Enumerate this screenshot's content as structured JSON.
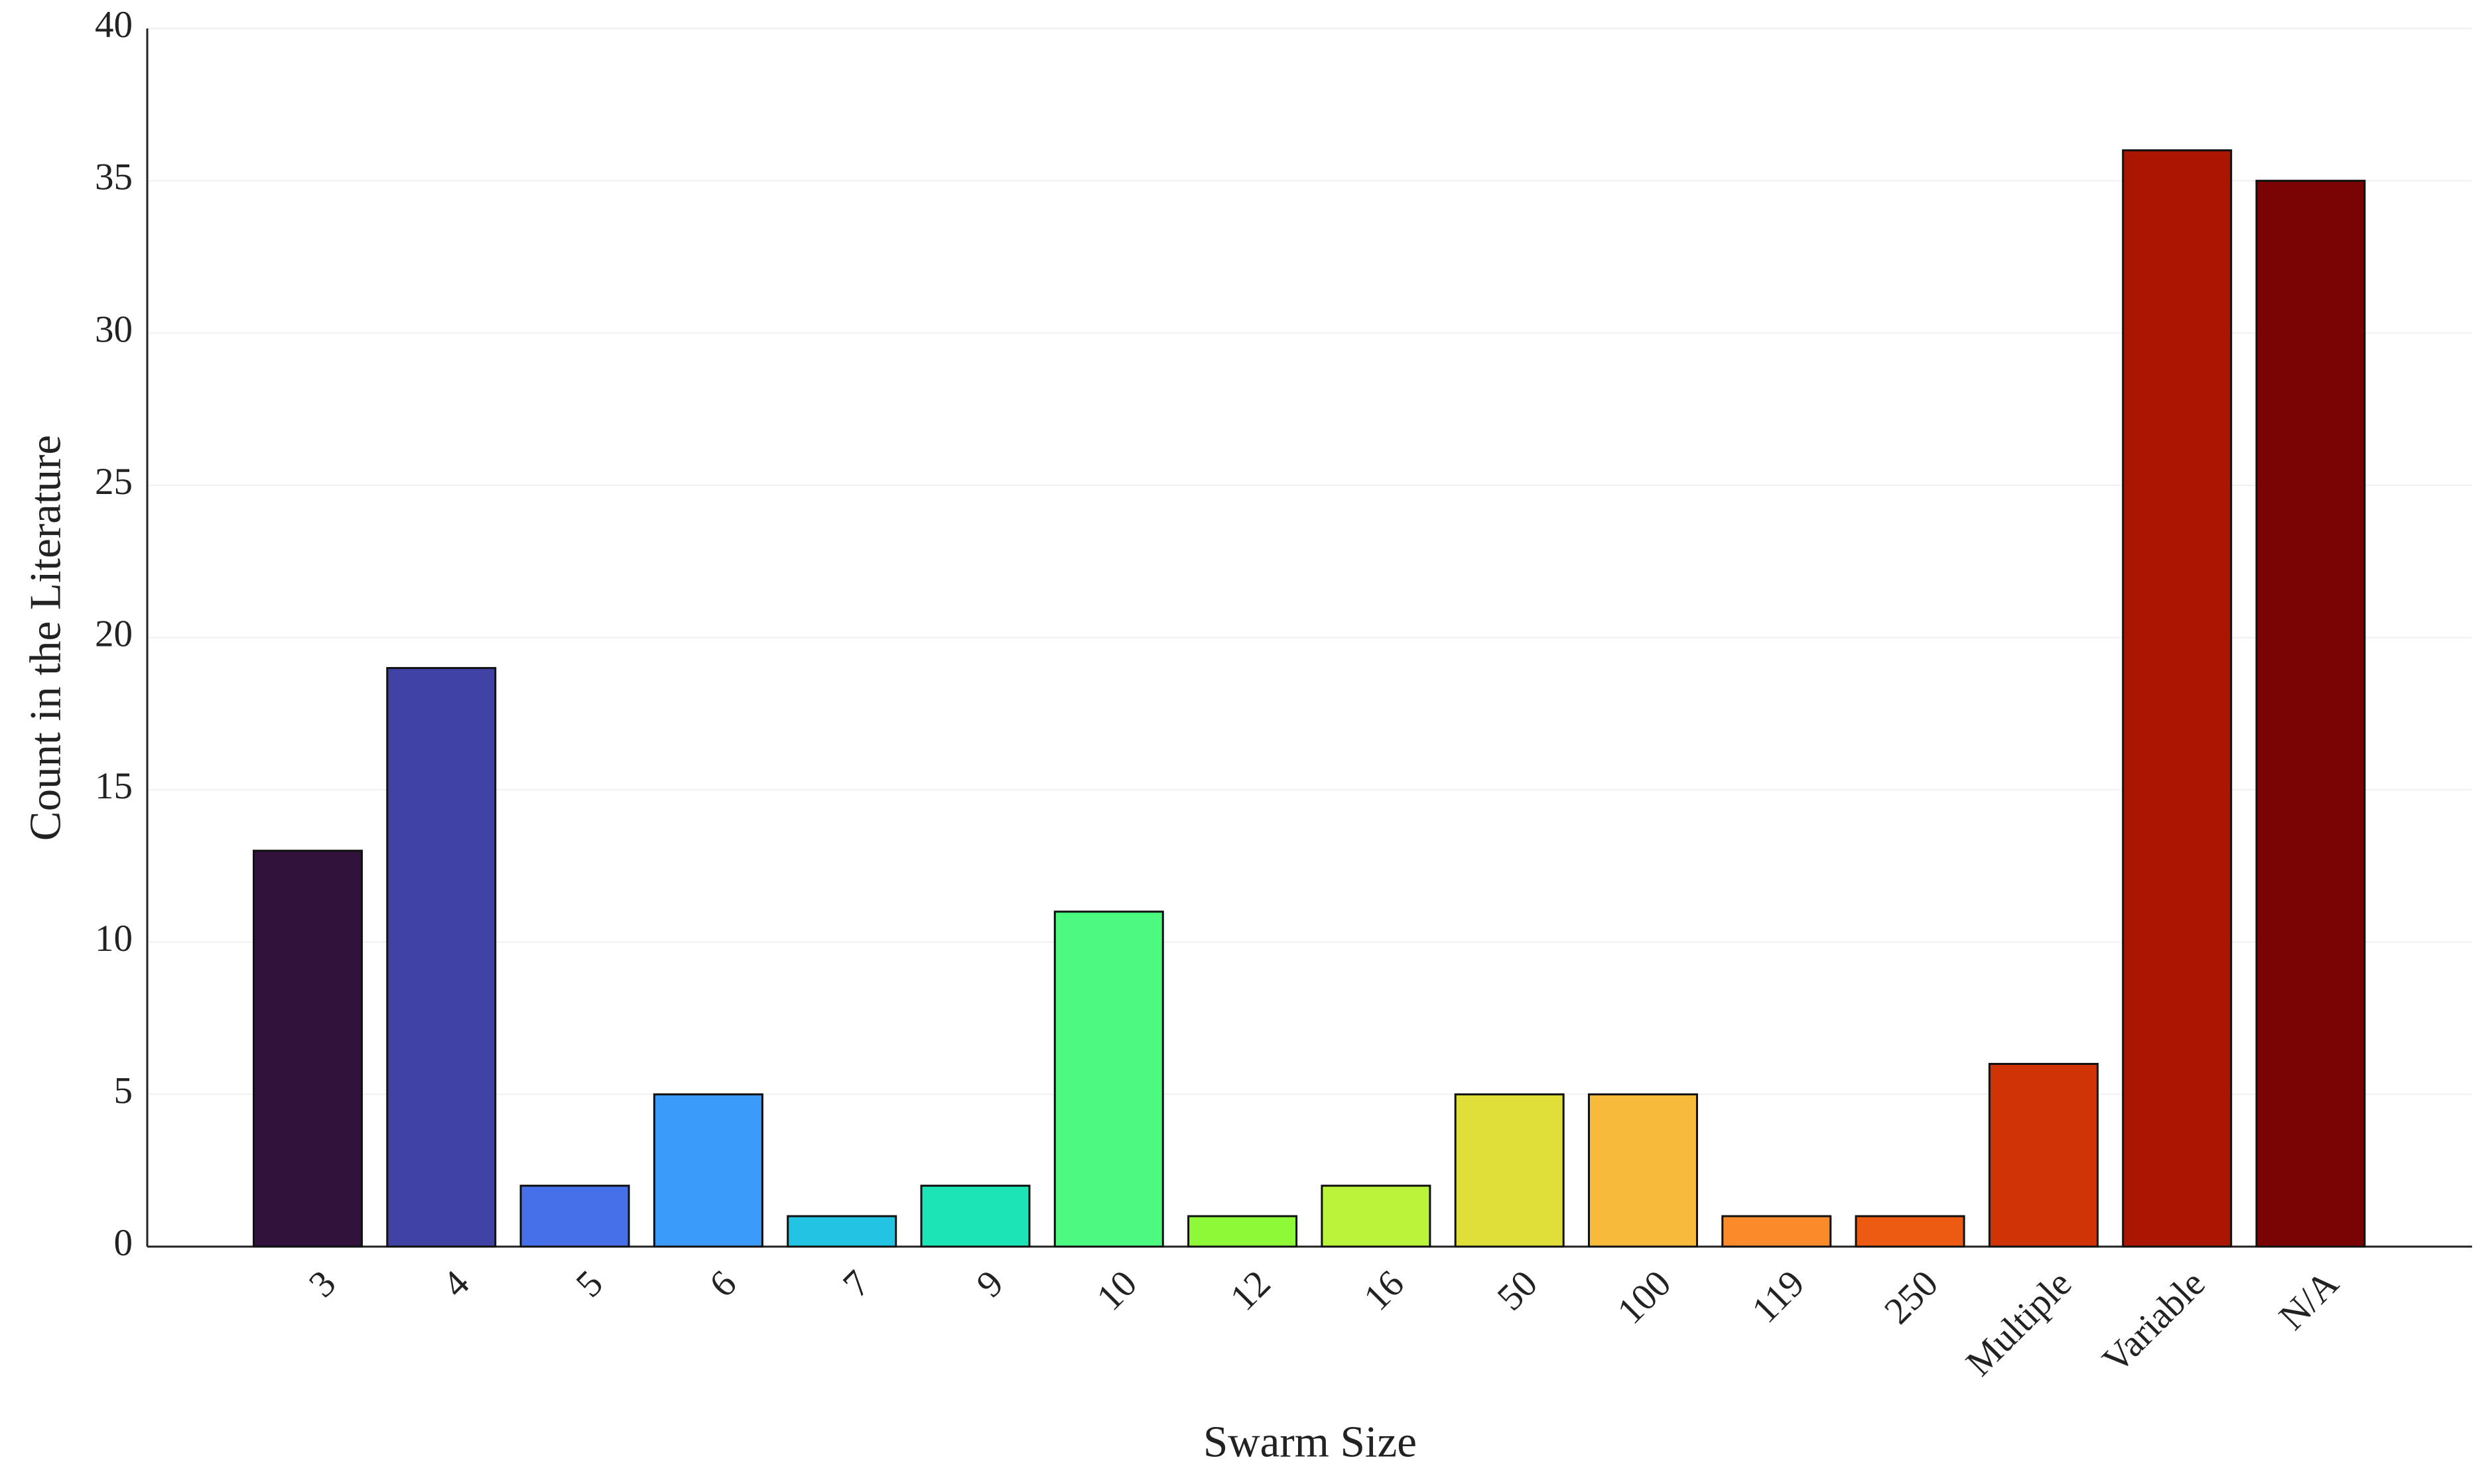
{
  "chart_data": {
    "type": "bar",
    "x_label": "Swarm Size",
    "y_label": "Count in the Literature",
    "categories": [
      "3",
      "4",
      "5",
      "6",
      "7",
      "9",
      "10",
      "12",
      "16",
      "50",
      "100",
      "119",
      "250",
      "Multiple",
      "Variable",
      "N/A"
    ],
    "values": [
      13,
      19,
      2,
      5,
      1,
      2,
      11,
      1,
      2,
      5,
      5,
      1,
      1,
      6,
      36,
      35
    ],
    "colors": [
      "#30123b",
      "#4043a3",
      "#4670ea",
      "#3a9bfb",
      "#22c3e3",
      "#1ce4b6",
      "#4bfa7e",
      "#8efa37",
      "#baf43a",
      "#e0de38",
      "#f8ba3a",
      "#fa8a2a",
      "#ed5a12",
      "#d03406",
      "#ab1603",
      "#7a0403"
    ],
    "ylim": [
      0,
      40
    ],
    "yticks": [
      0,
      5,
      10,
      15,
      20,
      25,
      30,
      35,
      40
    ],
    "grid": true
  }
}
